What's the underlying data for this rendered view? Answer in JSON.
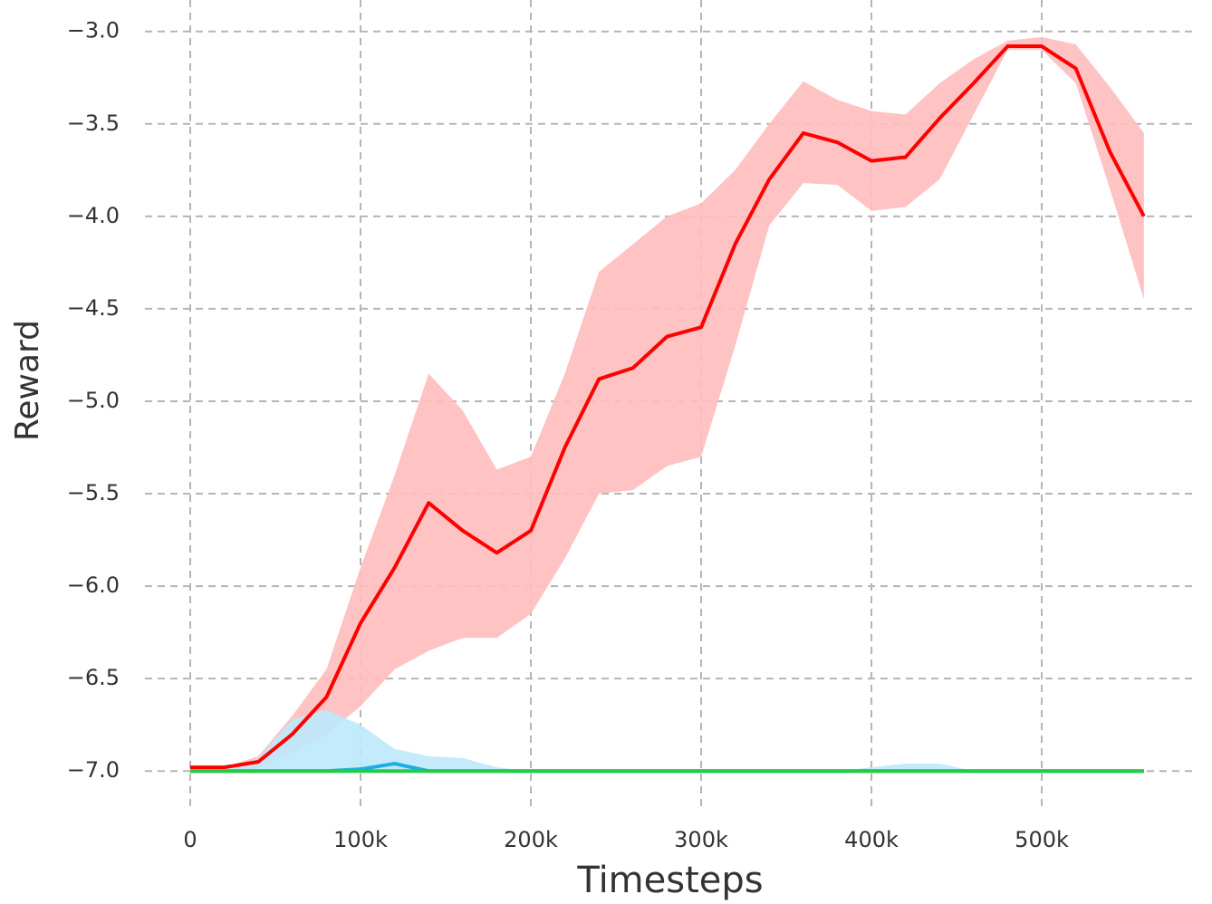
{
  "chart_data": {
    "type": "line",
    "x_label": "Timesteps",
    "y_label": "Reward",
    "x": [
      0,
      20000,
      40000,
      60000,
      80000,
      100000,
      120000,
      140000,
      160000,
      180000,
      200000,
      220000,
      240000,
      260000,
      280000,
      300000,
      320000,
      340000,
      360000,
      380000,
      400000,
      420000,
      440000,
      460000,
      480000,
      500000,
      520000,
      540000,
      560000
    ],
    "series": [
      {
        "color": "#ff0000",
        "band_color": "#ffbcbc",
        "values": [
          -6.98,
          -6.98,
          -6.95,
          -6.8,
          -6.6,
          -6.2,
          -5.9,
          -5.55,
          -5.7,
          -5.82,
          -5.7,
          -5.25,
          -4.88,
          -4.82,
          -4.65,
          -4.6,
          -4.15,
          -3.8,
          -3.55,
          -3.6,
          -3.7,
          -3.68,
          -3.47,
          -3.28,
          -3.08,
          -3.08,
          -3.2,
          -3.65,
          -4.0
        ],
        "lower": [
          -6.98,
          -6.98,
          -6.99,
          -6.9,
          -6.8,
          -6.65,
          -6.45,
          -6.35,
          -6.28,
          -6.28,
          -6.15,
          -5.85,
          -5.5,
          -5.48,
          -5.35,
          -5.3,
          -4.7,
          -4.05,
          -3.82,
          -3.83,
          -3.97,
          -3.95,
          -3.8,
          -3.45,
          -3.1,
          -3.1,
          -3.28,
          -3.85,
          -4.45
        ],
        "upper": [
          -6.98,
          -6.98,
          -6.92,
          -6.7,
          -6.45,
          -5.9,
          -5.4,
          -4.85,
          -5.05,
          -5.37,
          -5.3,
          -4.85,
          -4.3,
          -4.15,
          -4.0,
          -3.93,
          -3.75,
          -3.5,
          -3.27,
          -3.37,
          -3.43,
          -3.45,
          -3.28,
          -3.15,
          -3.05,
          -3.03,
          -3.07,
          -3.3,
          -3.55
        ]
      },
      {
        "color": "#1aaee8",
        "band_color": "#bde9fb",
        "values": [
          -7.0,
          -7.0,
          -7.0,
          -7.0,
          -7.0,
          -6.99,
          -6.96,
          -7.0,
          -7.0,
          -7.0,
          -7.0,
          -7.0,
          -7.0,
          -7.0,
          -7.0,
          -7.0,
          -7.0,
          -7.0,
          -7.0,
          -7.0,
          -7.0,
          -7.0,
          -7.0,
          -7.0,
          -7.0,
          -7.0,
          -7.0,
          -7.0,
          -7.0
        ],
        "lower": [
          -7.0,
          -7.0,
          -7.0,
          -7.0,
          -7.0,
          -7.0,
          -7.0,
          -7.0,
          -7.0,
          -7.0,
          -7.0,
          -7.0,
          -7.0,
          -7.0,
          -7.0,
          -7.0,
          -7.0,
          -7.0,
          -7.0,
          -7.0,
          -7.0,
          -7.0,
          -7.0,
          -7.0,
          -7.0,
          -7.0,
          -7.0,
          -7.0,
          -7.0
        ],
        "upper": [
          -7.0,
          -7.0,
          -6.93,
          -6.72,
          -6.67,
          -6.75,
          -6.88,
          -6.92,
          -6.93,
          -6.98,
          -7.0,
          -7.0,
          -7.0,
          -7.0,
          -7.0,
          -7.0,
          -7.0,
          -7.0,
          -7.0,
          -7.0,
          -6.98,
          -6.96,
          -6.96,
          -7.0,
          -7.0,
          -7.0,
          -7.0,
          -7.0,
          -7.0
        ]
      },
      {
        "color": "#22cc44",
        "values": [
          -7.0,
          -7.0,
          -7.0,
          -7.0,
          -7.0,
          -7.0,
          -7.0,
          -7.0,
          -7.0,
          -7.0,
          -7.0,
          -7.0,
          -7.0,
          -7.0,
          -7.0,
          -7.0,
          -7.0,
          -7.0,
          -7.0,
          -7.0,
          -7.0,
          -7.0,
          -7.0,
          -7.0,
          -7.0,
          -7.0,
          -7.0,
          -7.0,
          -7.0
        ]
      }
    ],
    "xlim": [
      -26600,
      590400
    ],
    "ylim": [
      -7.19,
      -2.83
    ],
    "xticks": [
      {
        "value": 0,
        "label": "0"
      },
      {
        "value": 100000,
        "label": "100k"
      },
      {
        "value": 200000,
        "label": "200k"
      },
      {
        "value": 300000,
        "label": "300k"
      },
      {
        "value": 400000,
        "label": "400k"
      },
      {
        "value": 500000,
        "label": "500k"
      }
    ],
    "yticks": [
      {
        "value": -3.0,
        "label": "−3.0"
      },
      {
        "value": -3.5,
        "label": "−3.5"
      },
      {
        "value": -4.0,
        "label": "−4.0"
      },
      {
        "value": -4.5,
        "label": "−4.5"
      },
      {
        "value": -5.0,
        "label": "−5.0"
      },
      {
        "value": -5.5,
        "label": "−5.5"
      },
      {
        "value": -6.0,
        "label": "−6.0"
      },
      {
        "value": -6.5,
        "label": "−6.5"
      },
      {
        "value": -7.0,
        "label": "−7.0"
      }
    ],
    "grid": true
  }
}
